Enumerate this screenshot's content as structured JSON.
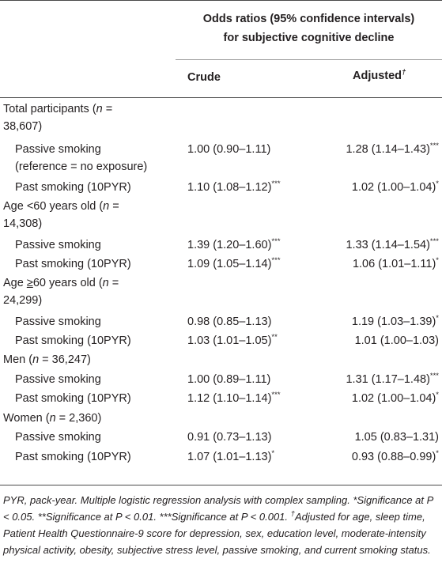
{
  "header": {
    "title_line1": "Odds ratios (95% confidence intervals)",
    "title_line2": "for subjective cognitive decline",
    "col_crude": "Crude",
    "col_adjusted": "Adjusted",
    "adjusted_mark": "†"
  },
  "rows": [
    {
      "label_html": "Total participants (<i>n</i> =",
      "label2": "38,607)",
      "crude": "",
      "adjusted": ""
    },
    {
      "label1": "Passive smoking",
      "label2": "(reference = no exposure)",
      "crude": "1.00 (0.90–1.11)",
      "adjusted": "1.28 (1.14–1.43)",
      "adjusted_sig": "***"
    },
    {
      "label1": "Past smoking (10PYR)",
      "crude": "1.10 (1.08–1.12)",
      "crude_sig": "***",
      "adjusted": "1.02 (1.00–1.04)",
      "adjusted_sig": "*"
    },
    {
      "label2": "14,308)",
      "crude": "",
      "adjusted": ""
    },
    {
      "label1": "Passive smoking",
      "crude": "1.39 (1.20–1.60)",
      "crude_sig": "***",
      "adjusted": "1.33 (1.14–1.54)",
      "adjusted_sig": "***"
    },
    {
      "label1": "Past smoking (10PYR)",
      "crude": "1.09 (1.05–1.14)",
      "crude_sig": "***",
      "adjusted": "1.06 (1.01–1.11)",
      "adjusted_sig": "*"
    },
    {
      "label2": "24,299)",
      "crude": "",
      "adjusted": ""
    },
    {
      "label1": "Passive smoking",
      "crude": "0.98 (0.85–1.13)",
      "adjusted": "1.19 (1.03–1.39)",
      "adjusted_sig": "*"
    },
    {
      "label1": "Past smoking (10PYR)",
      "crude": "1.03 (1.01–1.05)",
      "crude_sig": "**",
      "adjusted": "1.01 (1.00–1.03)"
    },
    {
      "crude": "",
      "adjusted": ""
    },
    {
      "label1": "Passive smoking",
      "crude": "1.00 (0.89–1.11)",
      "adjusted": "1.31 (1.17–1.48)",
      "adjusted_sig": "***"
    },
    {
      "label1": "Past smoking (10PYR)",
      "crude": "1.12 (1.10–1.14)",
      "crude_sig": "***",
      "adjusted": "1.02 (1.00–1.04)",
      "adjusted_sig": "*"
    },
    {
      "crude": "",
      "adjusted": ""
    },
    {
      "label1": "Passive smoking",
      "crude": "0.91 (0.73–1.13)",
      "adjusted": "1.05 (0.83–1.31)"
    },
    {
      "label1": "Past smoking (10PYR)",
      "crude": "1.07 (1.01–1.13)",
      "crude_sig": "*",
      "adjusted": "0.93 (0.88–0.99)",
      "adjusted_sig": "*"
    }
  ],
  "groups": {
    "total_a": "Total participants (",
    "total_n": "n",
    "total_b": " =",
    "age60lt_a": "Age <60 years old (",
    "age60lt_n": "n",
    "age60lt_b": " =",
    "age60ge_a": "Age ",
    "age60ge_sym": "≥",
    "age60ge_b": "60 years old (",
    "age60ge_n": "n",
    "age60ge_c": " =",
    "men_a": "Men (",
    "men_n": "n",
    "men_b": " = 36,247)",
    "women_a": "Women (",
    "women_n": "n",
    "women_b": " = 2,360)"
  },
  "footnote": {
    "text1": "PYR, pack-year. Multiple logistic regression analysis with complex sampling. *Significance at P < 0.05. **Significance at P < 0.01. ***Significance at P < 0.001. ",
    "dagger": "†",
    "text2": "Adjusted for age, sleep time, Patient Health Questionnaire-9 score for depression, sex, education level, moderate-intensity physical activity, obesity, subjective stress level, passive smoking, and current smoking status."
  }
}
